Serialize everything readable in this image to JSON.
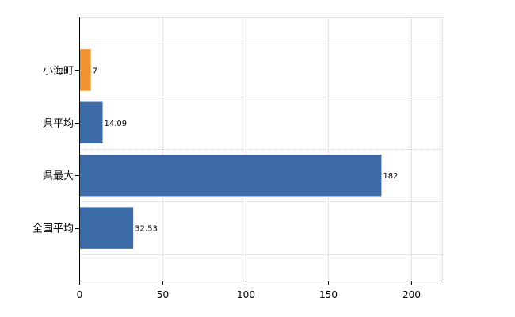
{
  "chart_data": {
    "type": "bar",
    "orientation": "horizontal",
    "categories": [
      "小海町",
      "県平均",
      "県最大",
      "全国平均"
    ],
    "values": [
      7,
      14.09,
      182,
      32.53
    ],
    "data_labels": [
      "7",
      "14.09",
      "182",
      "32.53"
    ],
    "colors": [
      "#f0922e",
      "#3b6aa7",
      "#3b6aa7",
      "#3b6aa7"
    ],
    "xlim": [
      0,
      219
    ],
    "x_ticks": [
      0,
      50,
      100,
      150,
      200
    ],
    "x_tick_labels": [
      "0",
      "50",
      "100",
      "150",
      "200"
    ],
    "grid": true,
    "title": "",
    "xlabel": "",
    "ylabel": ""
  }
}
